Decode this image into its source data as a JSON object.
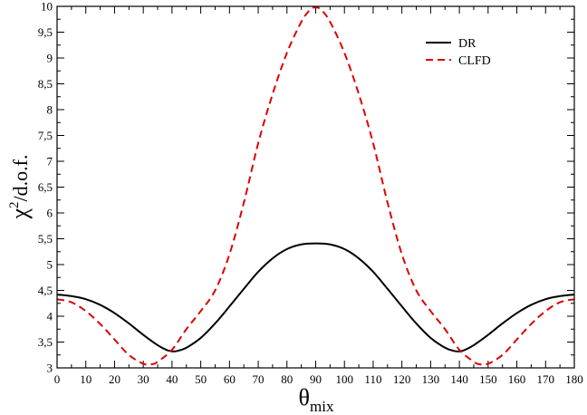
{
  "chart_data": {
    "type": "line",
    "title": "",
    "xlabel": {
      "base": "θ",
      "sub": "mix"
    },
    "ylabel": {
      "base": "χ",
      "sup": "2",
      "rest": "/d.o.f."
    },
    "xlim": [
      0,
      180
    ],
    "ylim": [
      3,
      10
    ],
    "xticks": [
      0,
      10,
      20,
      30,
      40,
      50,
      60,
      70,
      80,
      90,
      100,
      110,
      120,
      130,
      140,
      150,
      160,
      170,
      180
    ],
    "xtick_labels": [
      "0",
      "10",
      "20",
      "30",
      "40",
      "50",
      "60",
      "70",
      "80",
      "90",
      "100",
      "110",
      "120",
      "130",
      "140",
      "150",
      "160",
      "170",
      "180"
    ],
    "yticks": [
      3,
      3.5,
      4,
      4.5,
      5,
      5.5,
      6,
      6.5,
      7,
      7.5,
      8,
      8.5,
      9,
      9.5,
      10
    ],
    "ytick_labels": [
      "3",
      "3,5",
      "4",
      "4,5",
      "5",
      "5,5",
      "6",
      "6,5",
      "7",
      "7,5",
      "8",
      "8,5",
      "9",
      "9,5",
      "10"
    ],
    "grid": false,
    "legend_position": "top-right",
    "series": [
      {
        "name": "DR",
        "color": "#000000",
        "dash": "solid",
        "x": [
          0,
          5,
          10,
          15,
          20,
          25,
          30,
          35,
          38,
          40,
          42,
          45,
          50,
          55,
          60,
          65,
          70,
          75,
          80,
          85,
          90,
          95,
          100,
          105,
          110,
          115,
          120,
          125,
          130,
          135,
          138,
          140,
          142,
          145,
          150,
          155,
          160,
          165,
          170,
          175,
          180
        ],
        "y": [
          4.42,
          4.39,
          4.33,
          4.22,
          4.06,
          3.86,
          3.64,
          3.44,
          3.35,
          3.32,
          3.33,
          3.39,
          3.58,
          3.86,
          4.19,
          4.53,
          4.86,
          5.12,
          5.3,
          5.39,
          5.41,
          5.39,
          5.3,
          5.12,
          4.86,
          4.53,
          4.19,
          3.86,
          3.58,
          3.39,
          3.33,
          3.32,
          3.35,
          3.44,
          3.64,
          3.86,
          4.06,
          4.22,
          4.33,
          4.39,
          4.42
        ]
      },
      {
        "name": "CLFD",
        "color": "#dd0000",
        "dash": "dashed",
        "x": [
          0,
          5,
          10,
          15,
          20,
          25,
          30,
          33,
          35,
          40,
          45,
          50,
          55,
          60,
          65,
          70,
          75,
          80,
          85,
          88,
          90,
          92,
          95,
          100,
          105,
          110,
          115,
          120,
          125,
          130,
          135,
          140,
          145,
          147,
          150,
          155,
          160,
          165,
          170,
          175,
          180
        ],
        "y": [
          4.33,
          4.27,
          4.1,
          3.85,
          3.55,
          3.25,
          3.08,
          3.07,
          3.12,
          3.35,
          3.75,
          4.1,
          4.5,
          5.2,
          6.2,
          7.35,
          8.3,
          9.1,
          9.7,
          9.93,
          9.98,
          9.93,
          9.7,
          9.1,
          8.3,
          7.35,
          6.2,
          5.2,
          4.5,
          4.1,
          3.75,
          3.35,
          3.12,
          3.07,
          3.08,
          3.25,
          3.55,
          3.85,
          4.1,
          4.27,
          4.33
        ]
      }
    ]
  }
}
